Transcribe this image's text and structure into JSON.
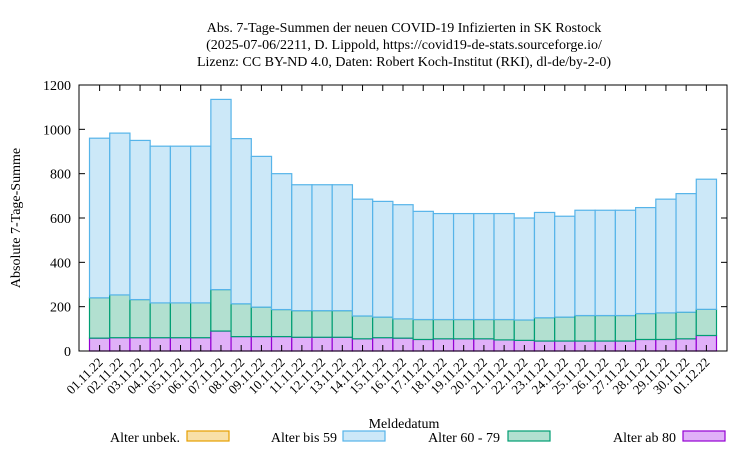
{
  "chart_data": {
    "type": "bar",
    "stacked": true,
    "title_lines": [
      "Abs. 7-Tage-Summen der neuen COVID-19 Infizierten in SK Rostock",
      "(2025-07-06/2211, D. Lippold, https://covid19-de-stats.sourceforge.io/",
      "Lizenz: CC BY-ND 4.0, Daten: Robert Koch-Institut (RKI), dl-de/by-2-0)"
    ],
    "xlabel": "Meldedatum",
    "ylabel": "Absolute 7-Tage-Summe",
    "ylim": [
      0,
      1200
    ],
    "yticks": [
      "0",
      "200",
      "400",
      "600",
      "800",
      "1000",
      "1200"
    ],
    "grid": false,
    "legend_position": "bottom",
    "categories": [
      "01.11.22",
      "02.11.22",
      "03.11.22",
      "04.11.22",
      "05.11.22",
      "06.11.22",
      "07.11.22",
      "08.11.22",
      "09.11.22",
      "10.11.22",
      "11.11.22",
      "12.11.22",
      "13.11.22",
      "14.11.22",
      "15.11.22",
      "16.11.22",
      "17.11.22",
      "18.11.22",
      "19.11.22",
      "20.11.22",
      "21.11.22",
      "22.11.22",
      "23.11.22",
      "24.11.22",
      "25.11.22",
      "26.11.22",
      "27.11.22",
      "28.11.22",
      "29.11.22",
      "30.11.22",
      "01.12.22"
    ],
    "series": [
      {
        "name": "Alter ab 80",
        "color": "#9400d3",
        "fill": "#e0b0f8",
        "values": [
          58,
          60,
          60,
          60,
          60,
          60,
          90,
          65,
          65,
          65,
          62,
          62,
          62,
          55,
          60,
          58,
          52,
          55,
          55,
          55,
          50,
          48,
          45,
          45,
          45,
          45,
          45,
          52,
          52,
          55,
          70
        ]
      },
      {
        "name": "Alter 60 - 79",
        "color": "#009e73",
        "fill": "#b2e0d0",
        "values": [
          182,
          193,
          172,
          157,
          157,
          157,
          187,
          148,
          133,
          122,
          120,
          120,
          120,
          103,
          93,
          87,
          90,
          87,
          87,
          87,
          92,
          92,
          105,
          108,
          115,
          115,
          115,
          117,
          120,
          120,
          118
        ]
      },
      {
        "name": "Alter bis 59",
        "color": "#56b4e9",
        "fill": "#cce8f8",
        "values": [
          720,
          730,
          718,
          707,
          707,
          707,
          858,
          745,
          680,
          613,
          568,
          568,
          568,
          527,
          522,
          515,
          488,
          478,
          478,
          478,
          478,
          460,
          475,
          455,
          475,
          475,
          475,
          478,
          513,
          535,
          587
        ]
      },
      {
        "name": "Alter unbek.",
        "color": "#e69f00",
        "fill": "#f8e0a8",
        "values": [
          0,
          0,
          0,
          0,
          0,
          0,
          0,
          0,
          0,
          0,
          0,
          0,
          0,
          0,
          0,
          0,
          0,
          0,
          0,
          0,
          0,
          0,
          0,
          0,
          0,
          0,
          0,
          0,
          0,
          0,
          0
        ]
      }
    ],
    "legend_order": [
      "Alter unbek.",
      "Alter bis 59",
      "Alter 60 - 79",
      "Alter ab 80"
    ]
  }
}
